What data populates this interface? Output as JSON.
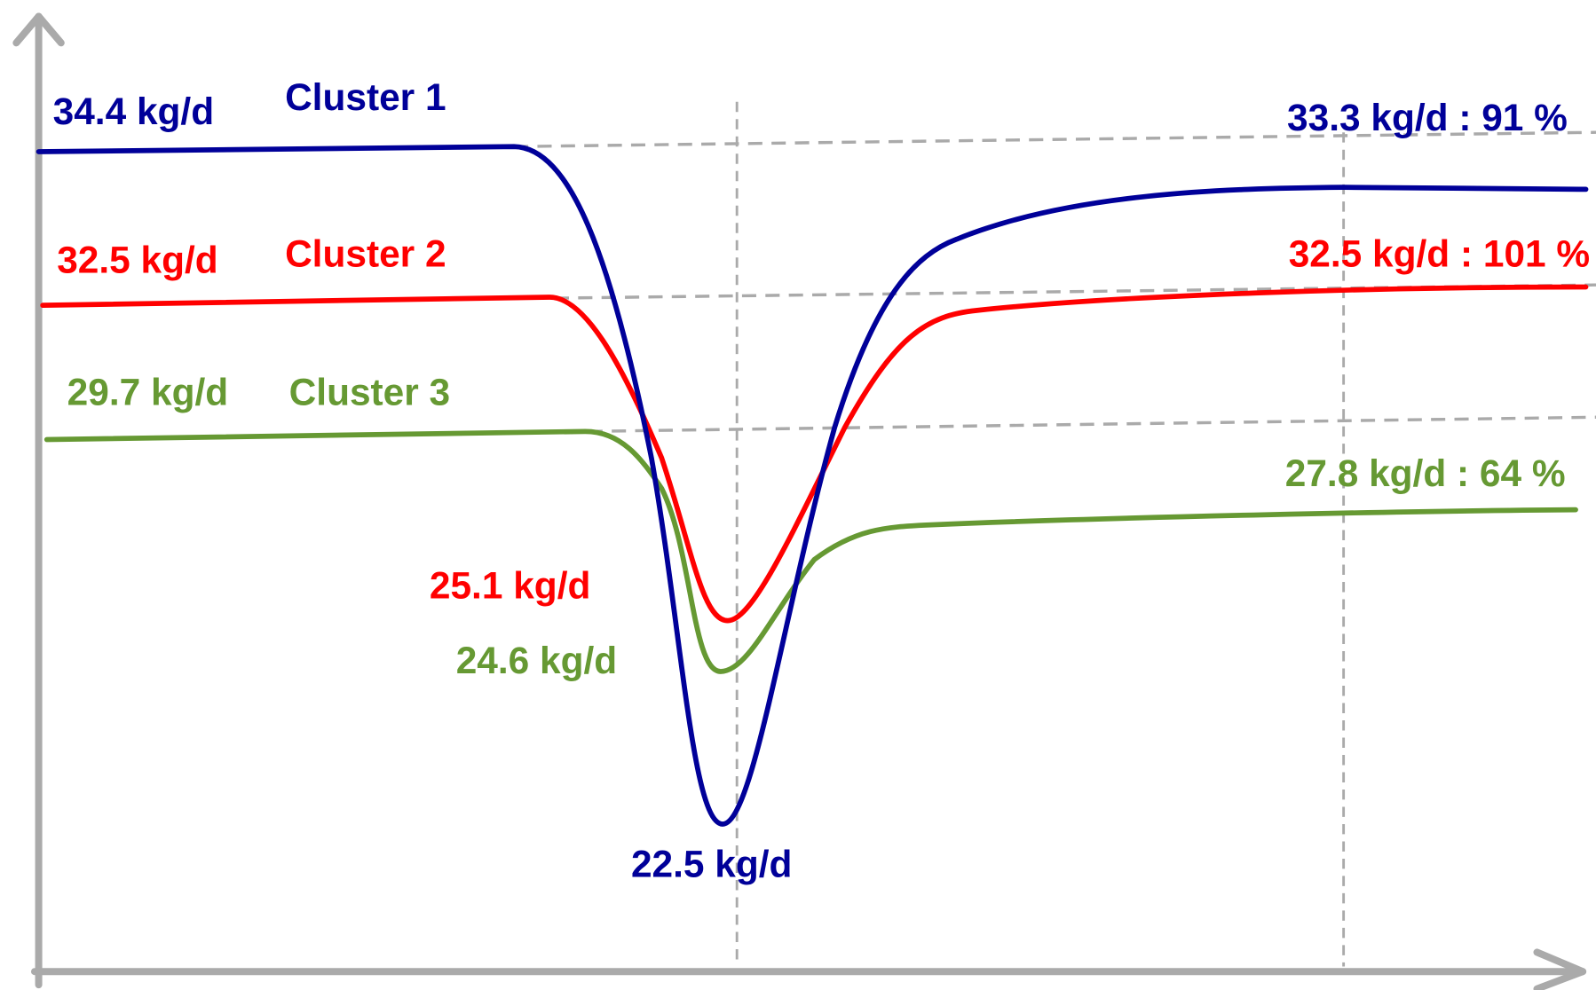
{
  "clusters": [
    {
      "name": "Cluster 1",
      "start": "34.4 kg/d",
      "minimum": "22.5 kg/d",
      "end": "33.3 kg/d : 91 %"
    },
    {
      "name": "Cluster 2",
      "start": "32.5 kg/d",
      "minimum": "25.1 kg/d",
      "end": "32.5 kg/d : 101 %"
    },
    {
      "name": "Cluster 3",
      "start": "29.7 kg/d",
      "minimum": "24.6 kg/d",
      "end": "27.8 kg/d : 64 %"
    }
  ]
}
